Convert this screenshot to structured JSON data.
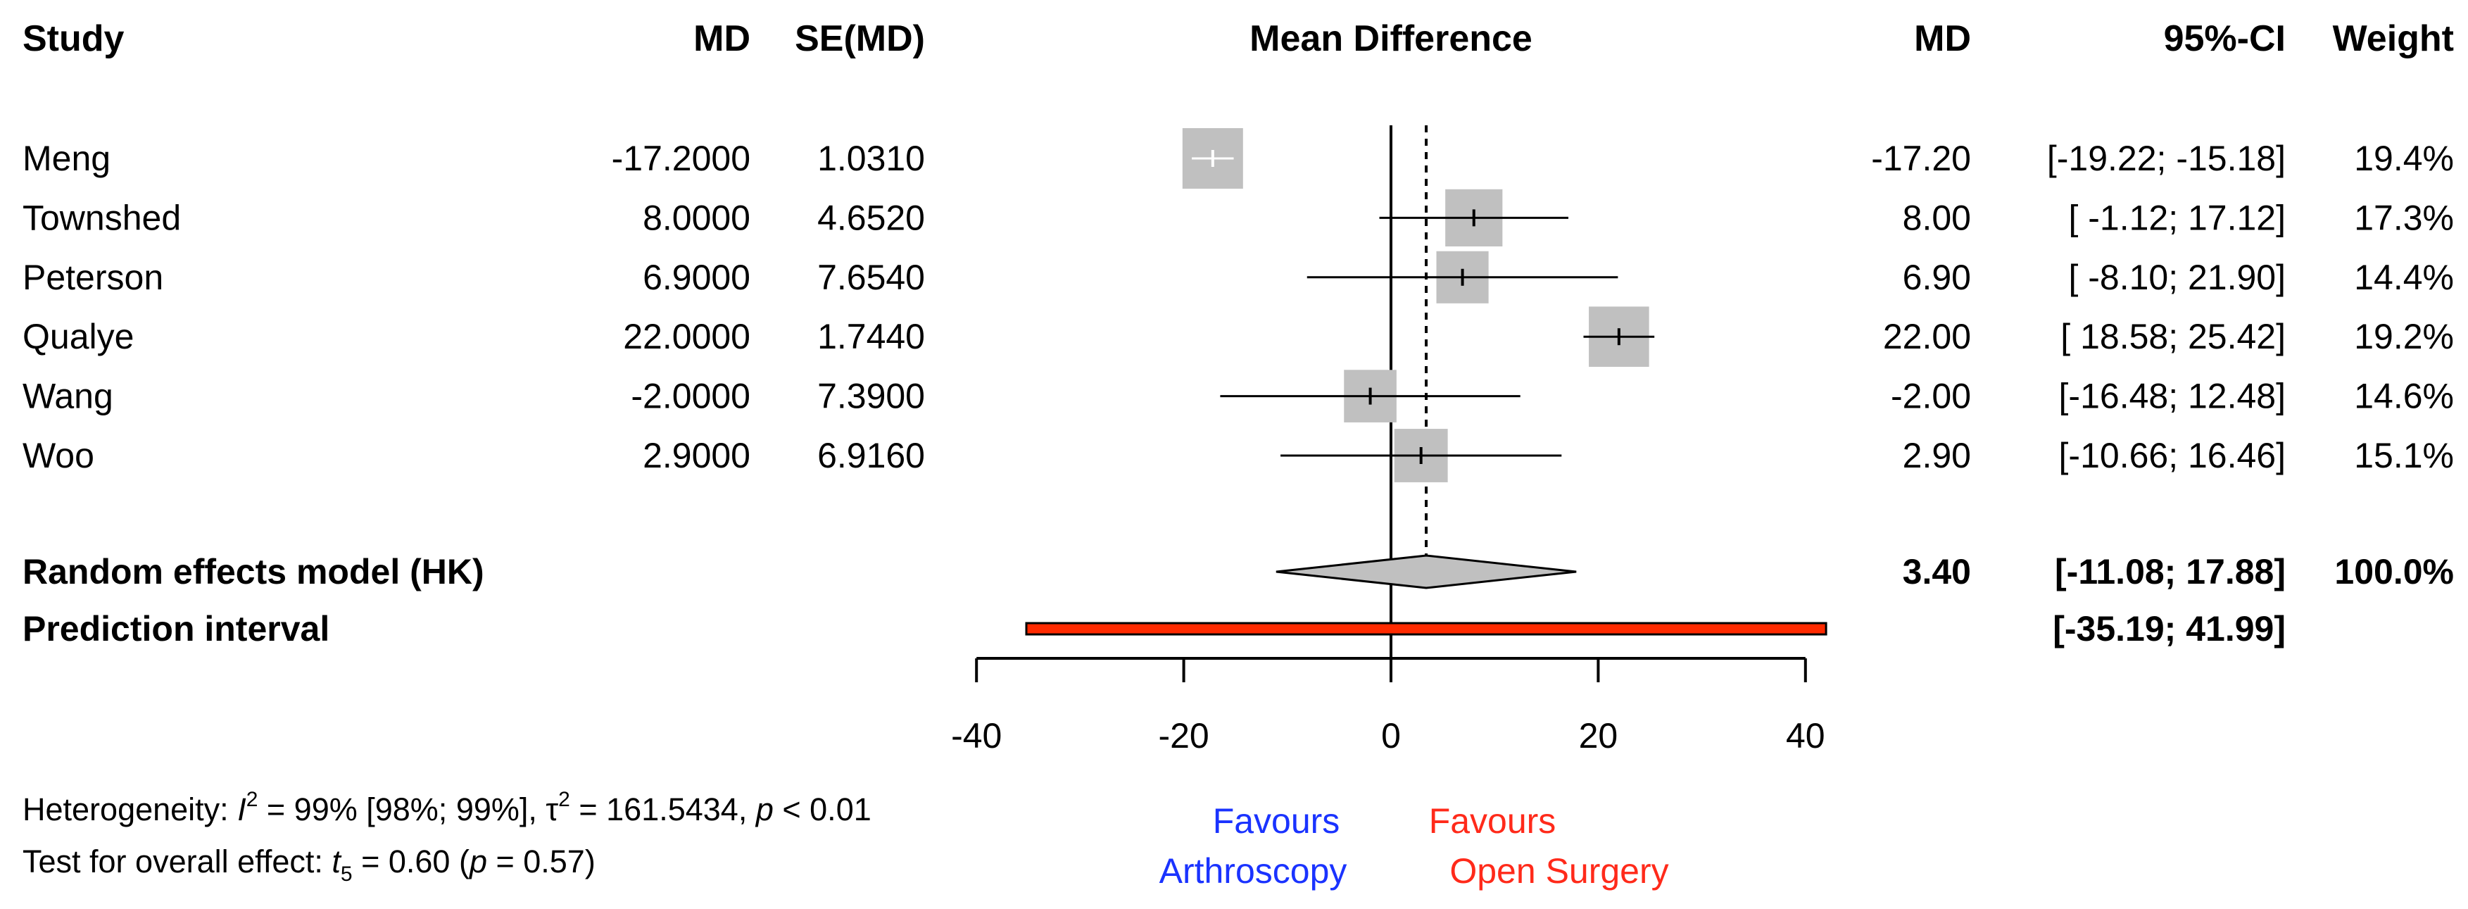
{
  "headers": {
    "study": "Study",
    "md": "MD",
    "se": "SE(MD)",
    "effect": "Mean Difference",
    "md_right": "MD",
    "ci": "95%-CI",
    "weight": "Weight"
  },
  "chart_data": {
    "type": "forest",
    "studies": [
      {
        "name": "Meng",
        "md": -17.2,
        "md_text": "-17.2000",
        "se_text": "1.0310",
        "lower": -19.22,
        "upper": -15.18,
        "md_r": "-17.20",
        "ci_text": "[-19.22; -15.18]",
        "weight_text": "19.4%",
        "weight": 19.4
      },
      {
        "name": "Townshed",
        "md": 8.0,
        "md_text": "8.0000",
        "se_text": "4.6520",
        "lower": -1.12,
        "upper": 17.12,
        "md_r": "8.00",
        "ci_text": "[ -1.12;  17.12]",
        "weight_text": "17.3%",
        "weight": 17.3
      },
      {
        "name": "Peterson",
        "md": 6.9,
        "md_text": "6.9000",
        "se_text": "7.6540",
        "lower": -8.1,
        "upper": 21.9,
        "md_r": "6.90",
        "ci_text": "[ -8.10;  21.90]",
        "weight_text": "14.4%",
        "weight": 14.4
      },
      {
        "name": "Qualye",
        "md": 22.0,
        "md_text": "22.0000",
        "se_text": "1.7440",
        "lower": 18.58,
        "upper": 25.42,
        "md_r": "22.00",
        "ci_text": "[ 18.58;  25.42]",
        "weight_text": "19.2%",
        "weight": 19.2
      },
      {
        "name": "Wang",
        "md": -2.0,
        "md_text": "-2.0000",
        "se_text": "7.3900",
        "lower": -16.48,
        "upper": 12.48,
        "md_r": "-2.00",
        "ci_text": "[-16.48;  12.48]",
        "weight_text": "14.6%",
        "weight": 14.6
      },
      {
        "name": "Woo",
        "md": 2.9,
        "md_text": "2.9000",
        "se_text": "6.9160",
        "lower": -10.66,
        "upper": 16.46,
        "md_r": "2.90",
        "ci_text": "[-10.66;  16.46]",
        "weight_text": "15.1%",
        "weight": 15.1
      }
    ],
    "pooled": {
      "label": "Random effects model (HK)",
      "md": 3.4,
      "lower": -11.08,
      "upper": 17.88,
      "md_text": "3.40",
      "ci_text": "[-11.08;  17.88]",
      "weight_text": "100.0%"
    },
    "prediction": {
      "label": "Prediction interval",
      "lower": -35.19,
      "upper": 41.99,
      "ci_text": "[-35.19;  41.99]"
    },
    "xlim": [
      -40,
      40
    ],
    "xticks": [
      -40,
      -20,
      0,
      20,
      40
    ],
    "reference_line": 0,
    "colors": {
      "box": "#c0c0c0",
      "diamond": "#c0c0c0",
      "prediction": "#ff2a00",
      "favours_left": "#1a33ff",
      "favours_right": "#ff2a1a"
    }
  },
  "heterogeneity": {
    "prefix": "Heterogeneity: ",
    "i_symbol": "I",
    "i_sup": "2",
    "i_value": " = 99% [98%; 99%], ",
    "tau_symbol": "τ",
    "tau_sup": "2",
    "tau_value": " = 161.5434, ",
    "p_symbol": "p",
    "p_value": " < 0.01"
  },
  "overall_test": {
    "prefix": "Test for overall effect: ",
    "t_symbol": "t",
    "t_sub": "5",
    "t_value": " = 0.60 (",
    "p_symbol": "p",
    "p_value": " = 0.57)"
  },
  "favours": {
    "left_line1": "Favours",
    "left_line2": "Arthroscopy",
    "right_line1": "Favours",
    "right_line2": "Open Surgery"
  }
}
